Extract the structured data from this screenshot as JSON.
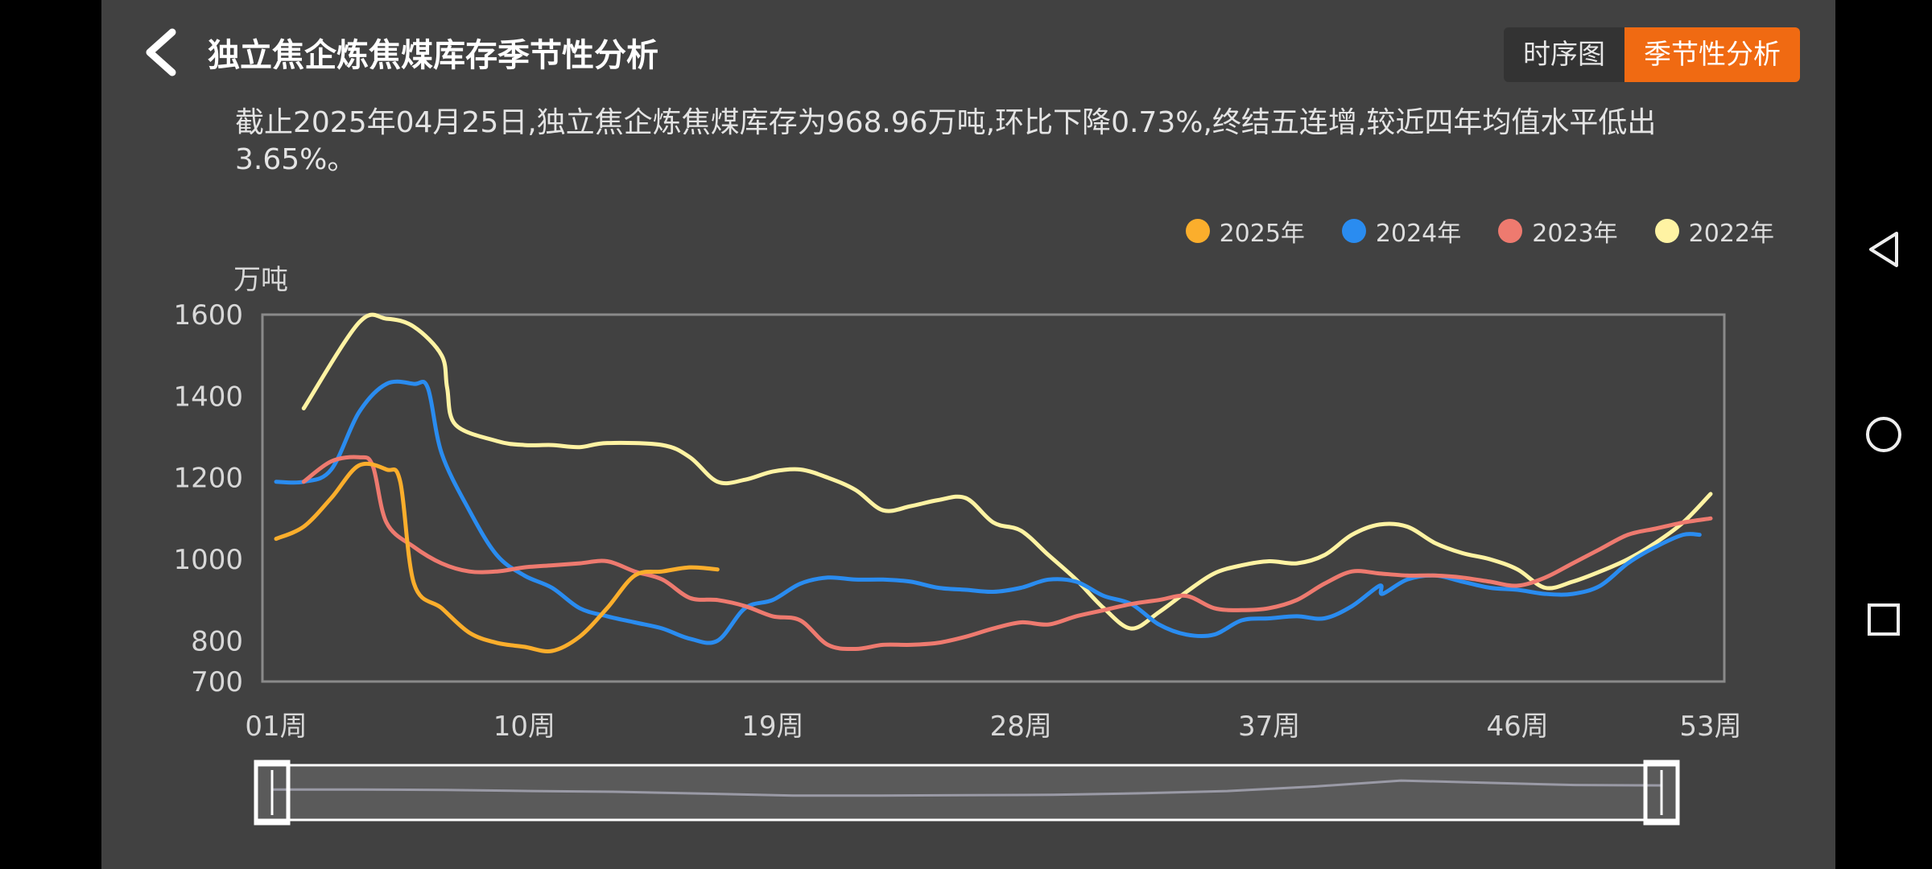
{
  "header": {
    "title": "独立焦企炼焦煤库存季节性分析",
    "tabs": [
      {
        "label": "时序图",
        "active": false
      },
      {
        "label": "季节性分析",
        "active": true
      }
    ]
  },
  "summary": "截止2025年04月25日,独立焦企炼焦煤库存为968.96万吨,环比下降0.73%,终结五连增,较近四年均值水平低出3.65%。",
  "chart_data": {
    "type": "line",
    "ylabel": "万吨",
    "ylim": [
      700,
      1600
    ],
    "yticks": [
      1600,
      1400,
      1200,
      1000,
      800,
      700
    ],
    "xlim": [
      0,
      52
    ],
    "xticks": [
      {
        "label": "01周",
        "week": 0
      },
      {
        "label": "10周",
        "week": 9
      },
      {
        "label": "19周",
        "week": 18
      },
      {
        "label": "28周",
        "week": 27
      },
      {
        "label": "37周",
        "week": 36
      },
      {
        "label": "46周",
        "week": 45
      },
      {
        "label": "53周",
        "week": 52
      }
    ],
    "legend_position": "top-right",
    "series": [
      {
        "name": "2022年",
        "color": "#fff3a3",
        "x": [
          1,
          3,
          4,
          5,
          6,
          6.2,
          6.5,
          8,
          9,
          10,
          11,
          12,
          14,
          15,
          16,
          17,
          18,
          19,
          20,
          21,
          22,
          23,
          24,
          25,
          26,
          27,
          28,
          29,
          30,
          31,
          32,
          33,
          34,
          35,
          36,
          37,
          38,
          39,
          40,
          41,
          42,
          43,
          44,
          45,
          46,
          47,
          48,
          49,
          50,
          51,
          52
        ],
        "values": [
          1370,
          1580,
          1590,
          1570,
          1500,
          1420,
          1330,
          1290,
          1280,
          1280,
          1275,
          1285,
          1280,
          1250,
          1190,
          1195,
          1215,
          1220,
          1200,
          1170,
          1120,
          1130,
          1145,
          1150,
          1090,
          1070,
          1010,
          950,
          880,
          830,
          870,
          920,
          965,
          985,
          995,
          990,
          1010,
          1060,
          1085,
          1080,
          1040,
          1015,
          1000,
          975,
          930,
          945,
          970,
          1000,
          1040,
          1090,
          1160
        ]
      },
      {
        "name": "2024年",
        "color": "#2a8cf0",
        "x": [
          0,
          1,
          2,
          3,
          4,
          5,
          5.5,
          6,
          7,
          8,
          9,
          10,
          11,
          12,
          13,
          14,
          15,
          16,
          17,
          18,
          19,
          20,
          21,
          22,
          23,
          24,
          25,
          26,
          27,
          28,
          29,
          30,
          31,
          32,
          33,
          34,
          35,
          36,
          37,
          38,
          39,
          40,
          40.1,
          41,
          42,
          43,
          44,
          45,
          46,
          47,
          48,
          49,
          50,
          51,
          51.6
        ],
        "values": [
          1190,
          1190,
          1220,
          1360,
          1430,
          1430,
          1420,
          1260,
          1120,
          1010,
          960,
          930,
          880,
          860,
          845,
          830,
          805,
          800,
          880,
          900,
          940,
          955,
          950,
          950,
          945,
          930,
          925,
          920,
          930,
          950,
          945,
          910,
          890,
          840,
          815,
          815,
          850,
          855,
          860,
          855,
          885,
          935,
          915,
          950,
          960,
          945,
          930,
          925,
          915,
          915,
          935,
          990,
          1030,
          1060,
          1060
        ]
      },
      {
        "name": "2023年",
        "color": "#ee7a6f",
        "x": [
          1,
          2,
          3,
          3.5,
          4,
          5,
          6,
          7,
          8,
          9,
          10,
          11,
          12,
          13,
          14,
          15,
          16,
          17,
          18,
          19,
          20,
          21,
          22,
          23,
          24,
          25,
          26,
          27,
          28,
          29,
          30,
          31,
          32,
          33,
          34,
          35,
          36,
          37,
          38,
          39,
          40,
          41,
          42,
          43,
          44,
          45,
          46,
          47,
          48,
          49,
          50,
          51,
          52
        ],
        "values": [
          1190,
          1240,
          1250,
          1230,
          1090,
          1030,
          990,
          970,
          970,
          980,
          985,
          990,
          995,
          970,
          950,
          905,
          900,
          885,
          860,
          850,
          790,
          780,
          790,
          790,
          795,
          810,
          830,
          845,
          840,
          860,
          875,
          890,
          900,
          910,
          880,
          875,
          880,
          900,
          940,
          970,
          965,
          960,
          960,
          955,
          945,
          935,
          955,
          990,
          1025,
          1060,
          1075,
          1090,
          1100
        ]
      },
      {
        "name": "2025年",
        "color": "#fbae2c",
        "x": [
          0,
          1,
          2,
          3,
          4,
          4.5,
          5,
          6,
          7,
          8,
          9,
          10,
          11,
          12,
          13,
          14,
          15,
          16
        ],
        "values": [
          1050,
          1080,
          1150,
          1230,
          1220,
          1190,
          940,
          880,
          820,
          795,
          785,
          775,
          810,
          880,
          960,
          970,
          980,
          975
        ]
      }
    ]
  },
  "scrollbar": {
    "range_start": 0,
    "range_end": 1,
    "overview": [
      1040,
      1040,
      1035,
      1020,
      1010,
      985,
      960,
      960,
      965,
      970,
      990,
      1020,
      1080,
      1160,
      1130,
      1100,
      1095
    ]
  },
  "nav": {
    "icons": [
      "back-triangle-icon",
      "home-circle-icon",
      "recents-square-icon"
    ]
  }
}
